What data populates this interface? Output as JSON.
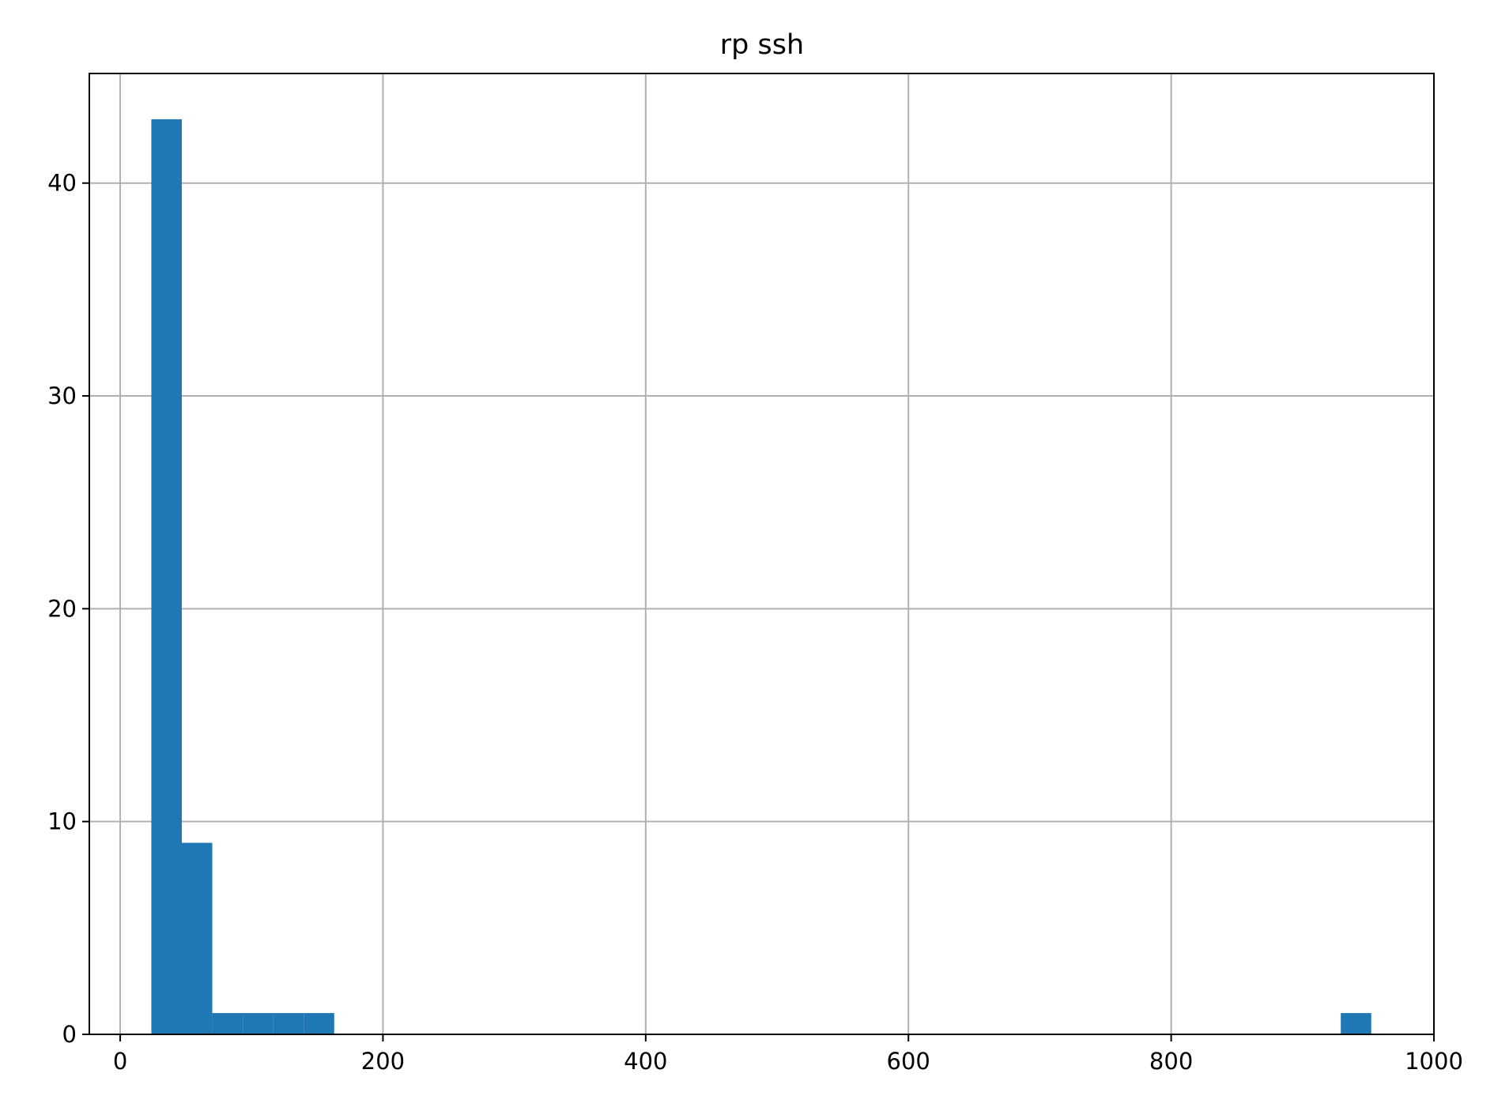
{
  "chart_data": {
    "type": "bar",
    "title": "rp ssh",
    "xlabel": "",
    "ylabel": "",
    "xlim": [
      -23.5,
      1000
    ],
    "ylim": [
      0,
      45.15
    ],
    "xticks": [
      0,
      200,
      400,
      600,
      800,
      1000
    ],
    "xtick_labels": [
      "0",
      "200",
      "400",
      "600",
      "800",
      "1000"
    ],
    "yticks": [
      0,
      10,
      20,
      30,
      40
    ],
    "ytick_labels": [
      "0",
      "10",
      "20",
      "30",
      "40"
    ],
    "grid": true,
    "bar_color": "#1f77b4",
    "bins": [
      {
        "x0": 23.7,
        "x1": 46.9,
        "count": 43
      },
      {
        "x0": 46.9,
        "x1": 70.1,
        "count": 9
      },
      {
        "x0": 70.1,
        "x1": 93.3,
        "count": 1
      },
      {
        "x0": 93.3,
        "x1": 116.5,
        "count": 1
      },
      {
        "x0": 116.5,
        "x1": 139.7,
        "count": 1
      },
      {
        "x0": 139.7,
        "x1": 162.9,
        "count": 1
      },
      {
        "x0": 929.1,
        "x1": 952.3,
        "count": 1
      }
    ]
  }
}
